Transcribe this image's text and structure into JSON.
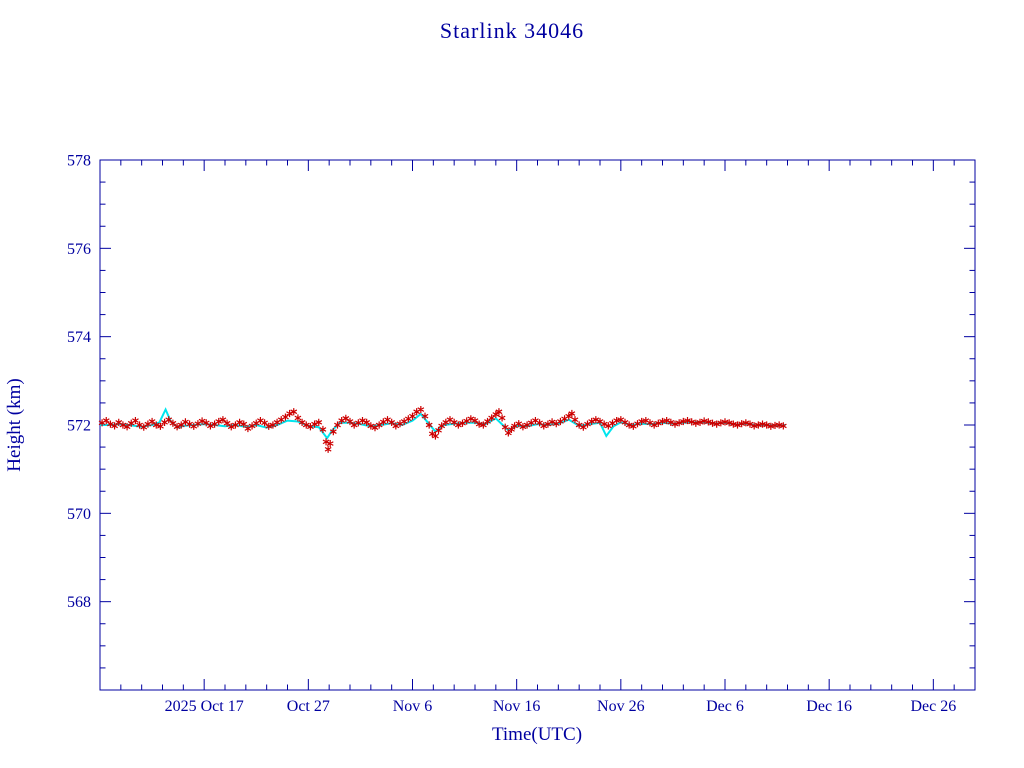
{
  "page": {
    "background": "#FFFFFF"
  },
  "chart_data": {
    "type": "scatter",
    "title": "Starlink 34046",
    "xlabel": "Time(UTC)",
    "ylabel": "Height (km)",
    "x_axis": {
      "unit": "days relative to 2025 Oct 17",
      "range": [
        -10,
        74
      ],
      "tick_positions": [
        0,
        10,
        20,
        30,
        40,
        50,
        60,
        70
      ],
      "tick_labels": [
        "2025 Oct 17",
        "Oct 27",
        "Nov 6",
        "Nov 16",
        "Nov 26",
        "Dec 6",
        "Dec 16",
        "Dec 26"
      ],
      "minor_tick_interval": 2
    },
    "y_axis": {
      "range": [
        566,
        578
      ],
      "tick_positions": [
        568,
        570,
        572,
        574,
        576,
        578
      ],
      "tick_labels": [
        "568",
        "570",
        "572",
        "574",
        "576",
        "578"
      ],
      "minor_tick_interval": 0.5
    },
    "grid": false,
    "legend": false,
    "colors": {
      "frame": "#0000A0",
      "text": "#0000A0",
      "observed": "#CC0000",
      "predicted": "#00E5EE"
    },
    "series": [
      {
        "name": "predicted-height",
        "type": "line",
        "color": "#00E5EE",
        "points": [
          [
            -10,
            572.0
          ],
          [
            -9,
            572.0
          ],
          [
            -8,
            572.02
          ],
          [
            -7,
            571.99
          ],
          [
            -6,
            571.96
          ],
          [
            -5,
            572.0
          ],
          [
            -4.3,
            572.06
          ],
          [
            -3.7,
            572.35
          ],
          [
            -3.2,
            572.08
          ],
          [
            -2.5,
            571.94
          ],
          [
            -2,
            571.98
          ],
          [
            -1,
            572.0
          ],
          [
            0,
            572.02
          ],
          [
            1,
            572.0
          ],
          [
            2,
            571.97
          ],
          [
            3,
            572.0
          ],
          [
            4,
            571.96
          ],
          [
            5,
            572.0
          ],
          [
            6,
            571.94
          ],
          [
            7,
            572.0
          ],
          [
            8,
            572.1
          ],
          [
            9,
            572.08
          ],
          [
            10,
            571.98
          ],
          [
            11,
            571.95
          ],
          [
            11.8,
            571.7
          ],
          [
            12.3,
            571.88
          ],
          [
            13,
            572.05
          ],
          [
            14,
            572.05
          ],
          [
            15,
            572.02
          ],
          [
            16,
            571.97
          ],
          [
            17,
            572.0
          ],
          [
            18,
            572.04
          ],
          [
            19,
            572.0
          ],
          [
            20,
            572.1
          ],
          [
            20.8,
            572.25
          ],
          [
            21.5,
            572.05
          ],
          [
            22.2,
            571.85
          ],
          [
            23,
            572.0
          ],
          [
            24,
            572.03
          ],
          [
            25,
            572.05
          ],
          [
            26,
            572.05
          ],
          [
            27,
            572.02
          ],
          [
            28,
            572.15
          ],
          [
            29.2,
            571.88
          ],
          [
            30,
            571.98
          ],
          [
            31,
            571.97
          ],
          [
            32,
            572.02
          ],
          [
            33,
            572.0
          ],
          [
            34,
            572.03
          ],
          [
            35,
            572.12
          ],
          [
            36,
            571.98
          ],
          [
            37,
            572.02
          ],
          [
            38,
            572.05
          ],
          [
            38.6,
            571.75
          ],
          [
            39.3,
            571.97
          ],
          [
            40,
            572.06
          ],
          [
            41,
            572.0
          ],
          [
            42,
            572.03
          ],
          [
            43,
            572.02
          ],
          [
            44,
            572.05
          ],
          [
            45,
            572.03
          ],
          [
            46,
            572.05
          ],
          [
            47,
            572.06
          ],
          [
            48,
            572.06
          ],
          [
            49,
            572.03
          ],
          [
            50,
            572.05
          ],
          [
            51,
            572.01
          ],
          [
            52,
            572.03
          ],
          [
            53,
            571.99
          ],
          [
            54,
            572.0
          ],
          [
            55,
            571.98
          ],
          [
            55.8,
            572.0
          ]
        ]
      },
      {
        "name": "observed-height",
        "type": "asterisk",
        "color": "#CC0000",
        "points": [
          [
            -9.8,
            572.05
          ],
          [
            -9.4,
            572.1
          ],
          [
            -9.0,
            572.02
          ],
          [
            -8.6,
            571.98
          ],
          [
            -8.2,
            572.06
          ],
          [
            -7.8,
            572.0
          ],
          [
            -7.4,
            571.96
          ],
          [
            -7.0,
            572.04
          ],
          [
            -6.6,
            572.1
          ],
          [
            -6.2,
            572.0
          ],
          [
            -5.8,
            571.95
          ],
          [
            -5.4,
            572.02
          ],
          [
            -5.0,
            572.08
          ],
          [
            -4.6,
            572.0
          ],
          [
            -4.2,
            571.97
          ],
          [
            -3.8,
            572.06
          ],
          [
            -3.4,
            572.12
          ],
          [
            -3.0,
            572.04
          ],
          [
            -2.6,
            571.96
          ],
          [
            -2.2,
            572.0
          ],
          [
            -1.8,
            572.07
          ],
          [
            -1.4,
            572.02
          ],
          [
            -1.0,
            571.97
          ],
          [
            -0.6,
            572.03
          ],
          [
            -0.2,
            572.09
          ],
          [
            0.2,
            572.05
          ],
          [
            0.6,
            571.98
          ],
          [
            1.0,
            572.02
          ],
          [
            1.4,
            572.08
          ],
          [
            1.8,
            572.12
          ],
          [
            2.2,
            572.04
          ],
          [
            2.6,
            571.96
          ],
          [
            3.0,
            572.0
          ],
          [
            3.4,
            572.06
          ],
          [
            3.8,
            572.02
          ],
          [
            4.2,
            571.92
          ],
          [
            4.6,
            571.98
          ],
          [
            5.0,
            572.04
          ],
          [
            5.4,
            572.1
          ],
          [
            5.8,
            572.05
          ],
          [
            6.2,
            571.97
          ],
          [
            6.6,
            572.0
          ],
          [
            7.0,
            572.06
          ],
          [
            7.4,
            572.12
          ],
          [
            7.8,
            572.18
          ],
          [
            8.2,
            572.26
          ],
          [
            8.6,
            572.3
          ],
          [
            9.0,
            572.16
          ],
          [
            9.4,
            572.06
          ],
          [
            9.8,
            572.0
          ],
          [
            10.2,
            571.96
          ],
          [
            10.6,
            572.02
          ],
          [
            11.0,
            572.06
          ],
          [
            11.4,
            571.9
          ],
          [
            11.7,
            571.62
          ],
          [
            11.9,
            571.45
          ],
          [
            12.1,
            571.58
          ],
          [
            12.4,
            571.85
          ],
          [
            12.8,
            572.0
          ],
          [
            13.2,
            572.1
          ],
          [
            13.6,
            572.15
          ],
          [
            14.0,
            572.08
          ],
          [
            14.4,
            572.0
          ],
          [
            14.8,
            572.05
          ],
          [
            15.2,
            572.1
          ],
          [
            15.6,
            572.06
          ],
          [
            16.0,
            571.98
          ],
          [
            16.4,
            571.94
          ],
          [
            16.8,
            572.0
          ],
          [
            17.2,
            572.07
          ],
          [
            17.6,
            572.12
          ],
          [
            18.0,
            572.06
          ],
          [
            18.4,
            571.98
          ],
          [
            18.8,
            572.03
          ],
          [
            19.2,
            572.08
          ],
          [
            19.6,
            572.14
          ],
          [
            20.0,
            572.2
          ],
          [
            20.4,
            572.3
          ],
          [
            20.8,
            572.35
          ],
          [
            21.2,
            572.2
          ],
          [
            21.6,
            572.0
          ],
          [
            21.9,
            571.8
          ],
          [
            22.2,
            571.75
          ],
          [
            22.5,
            571.88
          ],
          [
            22.8,
            571.98
          ],
          [
            23.2,
            572.06
          ],
          [
            23.6,
            572.12
          ],
          [
            24.0,
            572.06
          ],
          [
            24.4,
            572.0
          ],
          [
            24.8,
            572.04
          ],
          [
            25.2,
            572.09
          ],
          [
            25.6,
            572.14
          ],
          [
            26.0,
            572.1
          ],
          [
            26.4,
            572.02
          ],
          [
            26.8,
            572.0
          ],
          [
            27.2,
            572.08
          ],
          [
            27.6,
            572.16
          ],
          [
            28.0,
            572.24
          ],
          [
            28.3,
            572.3
          ],
          [
            28.6,
            572.16
          ],
          [
            28.9,
            571.95
          ],
          [
            29.2,
            571.82
          ],
          [
            29.5,
            571.9
          ],
          [
            29.8,
            571.98
          ],
          [
            30.2,
            572.03
          ],
          [
            30.6,
            571.96
          ],
          [
            31.0,
            572.0
          ],
          [
            31.4,
            572.05
          ],
          [
            31.8,
            572.1
          ],
          [
            32.2,
            572.05
          ],
          [
            32.6,
            571.98
          ],
          [
            33.0,
            572.02
          ],
          [
            33.4,
            572.07
          ],
          [
            33.8,
            572.03
          ],
          [
            34.2,
            572.08
          ],
          [
            34.6,
            572.14
          ],
          [
            35.0,
            572.2
          ],
          [
            35.3,
            572.26
          ],
          [
            35.6,
            572.12
          ],
          [
            36.0,
            572.0
          ],
          [
            36.4,
            571.95
          ],
          [
            36.8,
            572.02
          ],
          [
            37.2,
            572.08
          ],
          [
            37.6,
            572.12
          ],
          [
            38.0,
            572.08
          ],
          [
            38.4,
            572.02
          ],
          [
            38.8,
            571.98
          ],
          [
            39.2,
            572.04
          ],
          [
            39.6,
            572.1
          ],
          [
            40.0,
            572.12
          ],
          [
            40.4,
            572.06
          ],
          [
            40.8,
            572.0
          ],
          [
            41.2,
            571.97
          ],
          [
            41.6,
            572.03
          ],
          [
            42.0,
            572.08
          ],
          [
            42.4,
            572.1
          ],
          [
            42.8,
            572.05
          ],
          [
            43.2,
            572.0
          ],
          [
            43.6,
            572.04
          ],
          [
            44.0,
            572.08
          ],
          [
            44.4,
            572.1
          ],
          [
            44.8,
            572.06
          ],
          [
            45.2,
            572.02
          ],
          [
            45.6,
            572.05
          ],
          [
            46.0,
            572.08
          ],
          [
            46.4,
            572.1
          ],
          [
            46.8,
            572.07
          ],
          [
            47.2,
            572.04
          ],
          [
            47.6,
            572.06
          ],
          [
            48.0,
            572.09
          ],
          [
            48.4,
            572.07
          ],
          [
            48.8,
            572.04
          ],
          [
            49.2,
            572.02
          ],
          [
            49.6,
            572.05
          ],
          [
            50.0,
            572.07
          ],
          [
            50.4,
            572.05
          ],
          [
            50.8,
            572.02
          ],
          [
            51.2,
            572.0
          ],
          [
            51.6,
            572.03
          ],
          [
            52.0,
            572.05
          ],
          [
            52.4,
            572.02
          ],
          [
            52.8,
            571.98
          ],
          [
            53.2,
            572.0
          ],
          [
            53.6,
            572.02
          ],
          [
            54.0,
            572.0
          ],
          [
            54.4,
            571.97
          ],
          [
            54.8,
            571.99
          ],
          [
            55.2,
            572.0
          ],
          [
            55.6,
            571.98
          ]
        ]
      }
    ]
  }
}
